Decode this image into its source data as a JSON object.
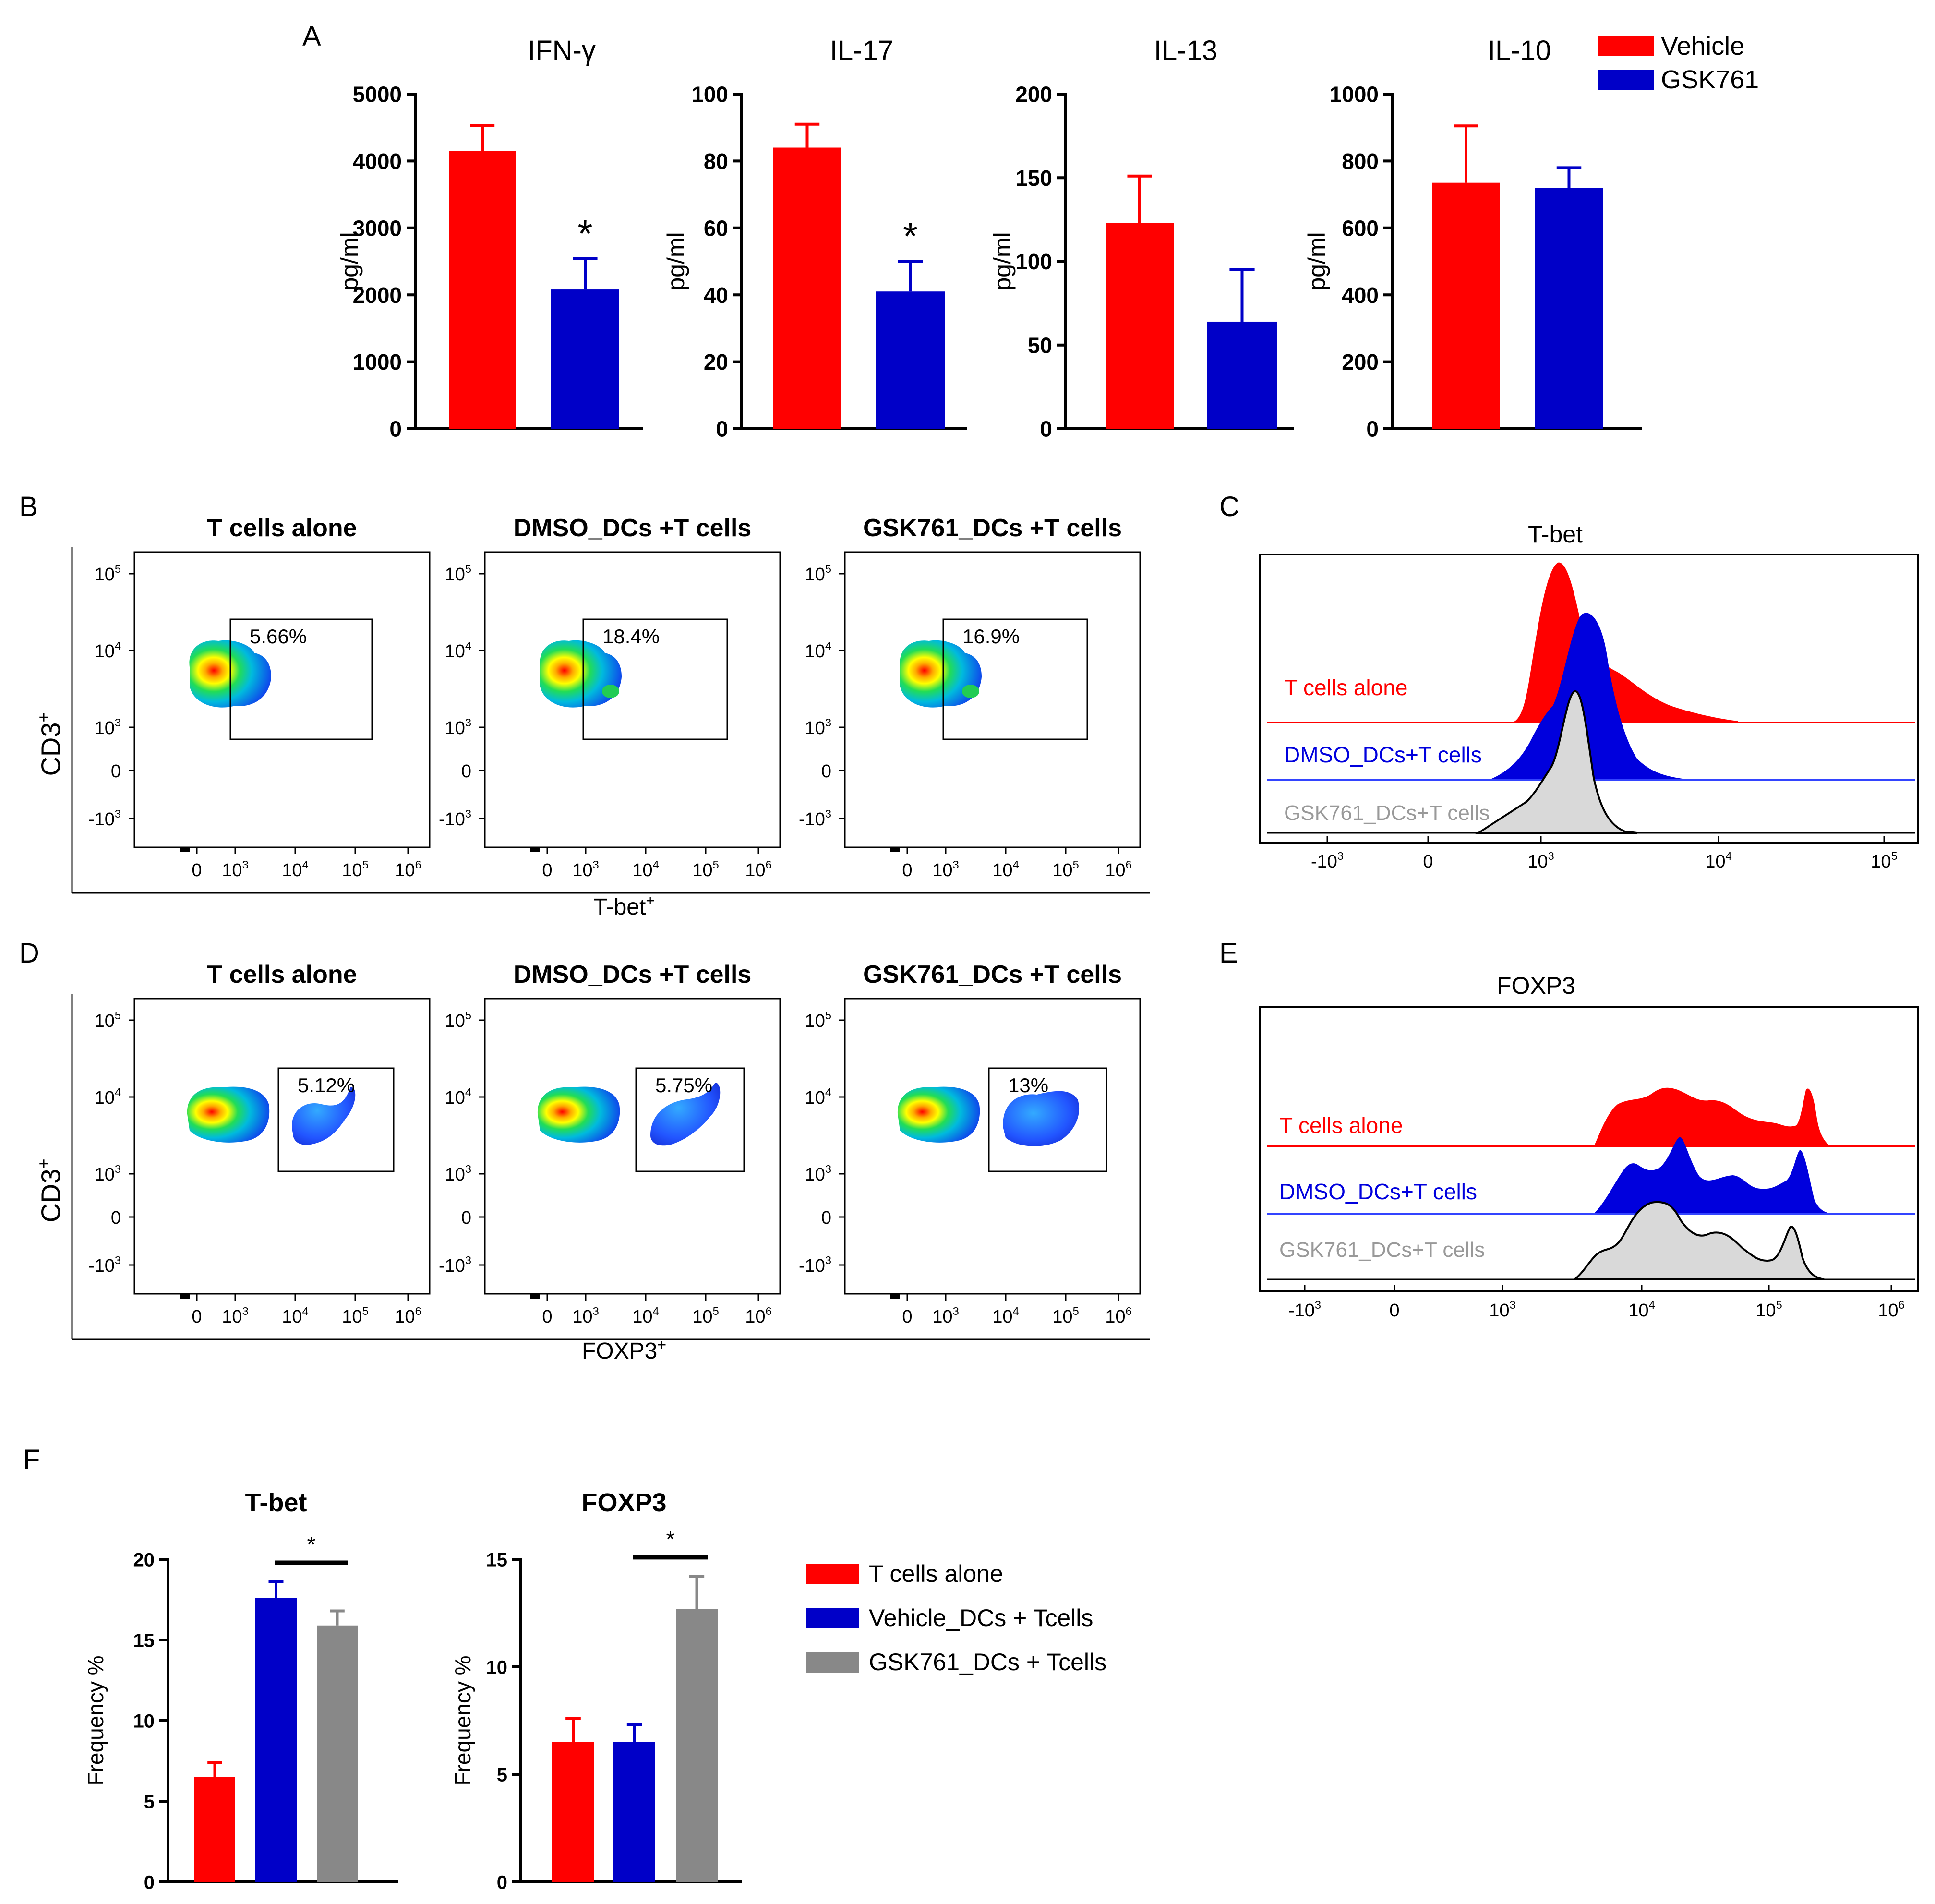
{
  "panel_letters": {
    "a": "A",
    "b": "B",
    "c": "C",
    "d": "D",
    "e": "E",
    "f": "F"
  },
  "colors": {
    "vehicle": "#ff0000",
    "gsk761": "#0000c8",
    "gray": "#888888",
    "hist_red": "#ff0000",
    "hist_blue": "#0000dd",
    "hist_gray": "#d9d9d9",
    "hist_blue_line": "#3344ff"
  },
  "flow_b": {
    "y_axis_label": "CD3",
    "y_axis_sup": "+",
    "x_axis_label": "T-bet",
    "x_axis_sup": "+",
    "plots": [
      {
        "title": "T cells alone",
        "gate_percent": "5.66%"
      },
      {
        "title": "DMSO_DCs +T cells",
        "gate_percent": "18.4%"
      },
      {
        "title": "GSK761_DCs +T cells",
        "gate_percent": "16.9%"
      }
    ]
  },
  "flow_d": {
    "y_axis_label": "CD3",
    "y_axis_sup": "+",
    "x_axis_label": "FOXP3",
    "x_axis_sup": "+",
    "plots": [
      {
        "title": "T cells alone",
        "gate_percent": "5.12%"
      },
      {
        "title": "DMSO_DCs +T cells",
        "gate_percent": "5.75%"
      },
      {
        "title": "GSK761_DCs +T cells",
        "gate_percent": "13%"
      }
    ]
  },
  "flow_ticks": {
    "y": [
      {
        "b": "10",
        "e": "5"
      },
      {
        "b": "10",
        "e": "4"
      },
      {
        "b": "10",
        "e": "3"
      },
      {
        "b": "0",
        "e": ""
      },
      {
        "b": "-10",
        "e": "3"
      }
    ],
    "x": [
      {
        "b": "0",
        "e": ""
      },
      {
        "b": "10",
        "e": "3"
      },
      {
        "b": "10",
        "e": "4"
      },
      {
        "b": "10",
        "e": "5"
      },
      {
        "b": "10",
        "e": "6"
      }
    ]
  },
  "hist_c": {
    "title": "T-bet",
    "tracks": [
      "T cells alone",
      "DMSO_DCs+T cells",
      "GSK761_DCs+T cells"
    ],
    "x_ticks": [
      {
        "b": "-10",
        "e": "3"
      },
      {
        "b": "0",
        "e": ""
      },
      {
        "b": "10",
        "e": "3"
      },
      {
        "b": "10",
        "e": "4"
      },
      {
        "b": "10",
        "e": "5"
      }
    ]
  },
  "hist_e": {
    "title": "FOXP3",
    "tracks": [
      "T cells alone",
      "DMSO_DCs+T cells",
      "GSK761_DCs+T cells"
    ],
    "x_ticks": [
      {
        "b": "-10",
        "e": "3"
      },
      {
        "b": "0",
        "e": ""
      },
      {
        "b": "10",
        "e": "3"
      },
      {
        "b": "10",
        "e": "4"
      },
      {
        "b": "10",
        "e": "5"
      },
      {
        "b": "10",
        "e": "6"
      }
    ]
  },
  "chart_data": [
    {
      "type": "bar",
      "title": "IFN-γ",
      "xlabel": "",
      "ylabel": "pg/ml",
      "ylim": [
        0,
        5000
      ],
      "yticks": [
        0,
        1000,
        2000,
        3000,
        4000,
        5000
      ],
      "categories": [
        "Vehicle",
        "GSK761"
      ],
      "values": [
        4150,
        2080
      ],
      "errors": [
        380,
        460
      ],
      "significance": [
        "",
        "*"
      ]
    },
    {
      "type": "bar",
      "title": "IL-17",
      "xlabel": "",
      "ylabel": "pg/ml",
      "ylim": [
        0,
        100
      ],
      "yticks": [
        0,
        20,
        40,
        60,
        80,
        100
      ],
      "categories": [
        "Vehicle",
        "GSK761"
      ],
      "values": [
        84,
        41
      ],
      "errors": [
        7,
        9
      ],
      "significance": [
        "",
        "*"
      ]
    },
    {
      "type": "bar",
      "title": "IL-13",
      "xlabel": "",
      "ylabel": "pg/ml",
      "ylim": [
        0,
        200
      ],
      "yticks": [
        0,
        50,
        100,
        150,
        200
      ],
      "categories": [
        "Vehicle",
        "GSK761"
      ],
      "values": [
        123,
        64
      ],
      "errors": [
        28,
        31
      ],
      "significance": [
        "",
        ""
      ]
    },
    {
      "type": "bar",
      "title": "IL-10",
      "xlabel": "",
      "ylabel": "pg/ml",
      "ylim": [
        0,
        1000
      ],
      "yticks": [
        0,
        200,
        400,
        600,
        800,
        1000
      ],
      "categories": [
        "Vehicle",
        "GSK761"
      ],
      "values": [
        735,
        720
      ],
      "errors": [
        170,
        60
      ],
      "significance": [
        "",
        ""
      ],
      "legend": [
        "Vehicle",
        "GSK761"
      ]
    },
    {
      "type": "bar",
      "title": "T-bet",
      "xlabel": "",
      "ylabel": "Frequency %",
      "ylim": [
        0,
        20
      ],
      "yticks": [
        0,
        5,
        10,
        15,
        20
      ],
      "categories": [
        "T cells alone",
        "Vehicle_DCs + Tcells",
        "GSK761_DCs + Tcells"
      ],
      "values": [
        6.5,
        17.6,
        15.9
      ],
      "errors": [
        0.9,
        1.0,
        0.9
      ],
      "significance_bar": {
        "from": 1,
        "to": 2,
        "label": "*"
      }
    },
    {
      "type": "bar",
      "title": "FOXP3",
      "xlabel": "",
      "ylabel": "Frequency %",
      "ylim": [
        0,
        15
      ],
      "yticks": [
        0,
        5,
        10,
        15
      ],
      "categories": [
        "T cells alone",
        "Vehicle_DCs + Tcells",
        "GSK761_DCs + Tcells"
      ],
      "values": [
        6.5,
        6.5,
        12.7
      ],
      "errors": [
        1.1,
        0.8,
        1.5
      ],
      "significance_bar": {
        "from": 1,
        "to": 2,
        "label": "*"
      },
      "legend": [
        "T cells alone",
        "Vehicle_DCs + Tcells",
        "GSK761_DCs + Tcells"
      ]
    }
  ]
}
